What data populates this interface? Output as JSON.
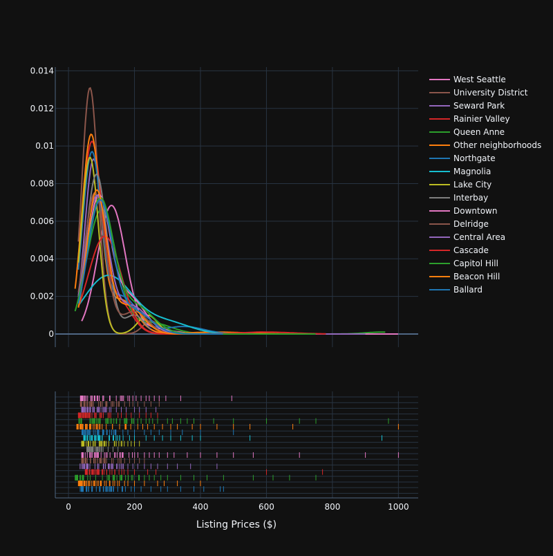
{
  "chart_data": {
    "type": "line",
    "subtype": "distplot",
    "xlabel": "Listing Prices ($)",
    "ylabel": "",
    "xlim": [
      -40,
      1060
    ],
    "ylim": [
      -0.0007,
      0.0142
    ],
    "x_ticks": [
      0,
      200,
      400,
      600,
      800,
      1000
    ],
    "y_ticks": [
      0,
      0.002,
      0.004,
      0.006,
      0.008,
      0.01,
      0.012,
      0.014
    ],
    "y_tick_labels": [
      "0",
      "0.002",
      "0.004",
      "0.006",
      "0.008",
      "0.01",
      "0.012",
      "0.014"
    ],
    "grid": true,
    "legend_position": "top-right",
    "series": [
      {
        "name": "West Seattle",
        "color": "#e377c2",
        "min": 40,
        "max": 500,
        "peaks": [
          [
            130,
            0.0068,
            42
          ],
          [
            250,
            0.0003,
            60
          ]
        ]
      },
      {
        "name": "University District",
        "color": "#8c564b",
        "min": 30,
        "max": 280,
        "peaks": [
          [
            65,
            0.0131,
            25
          ],
          [
            250,
            0.0007,
            25
          ]
        ]
      },
      {
        "name": "Seward Park",
        "color": "#9467bd",
        "min": 30,
        "max": 400,
        "peaks": [
          [
            75,
            0.009,
            26
          ],
          [
            160,
            0.0018,
            45
          ]
        ]
      },
      {
        "name": "Rainier Valley",
        "color": "#d62728",
        "min": 25,
        "max": 600,
        "peaks": [
          [
            70,
            0.01,
            30
          ],
          [
            150,
            0.0018,
            40
          ],
          [
            580,
            0.0001,
            40
          ]
        ]
      },
      {
        "name": "Queen Anne",
        "color": "#2ca02c",
        "min": 30,
        "max": 960,
        "peaks": [
          [
            100,
            0.0066,
            45
          ],
          [
            250,
            0.0006,
            60
          ],
          [
            950,
            0.0001,
            50
          ]
        ]
      },
      {
        "name": "Other neighborhoods",
        "color": "#ff7f0e",
        "min": 20,
        "max": 1000,
        "peaks": [
          [
            68,
            0.0104,
            28
          ],
          [
            160,
            0.0018,
            45
          ],
          [
            450,
            0.0001,
            90
          ]
        ]
      },
      {
        "name": "Northgate",
        "color": "#1f77b4",
        "min": 30,
        "max": 950,
        "peaks": [
          [
            70,
            0.0093,
            28
          ],
          [
            160,
            0.002,
            50
          ],
          [
            350,
            0.0004,
            60
          ]
        ]
      },
      {
        "name": "Magnolia",
        "color": "#17becf",
        "min": 30,
        "max": 950,
        "peaks": [
          [
            120,
            0.0031,
            75
          ],
          [
            300,
            0.0006,
            70
          ]
        ]
      },
      {
        "name": "Lake City",
        "color": "#bcbd22",
        "min": 30,
        "max": 300,
        "peaks": [
          [
            65,
            0.0094,
            26
          ],
          [
            240,
            0.001,
            30
          ]
        ]
      },
      {
        "name": "Interbay",
        "color": "#7f7f7f",
        "min": 40,
        "max": 250,
        "peaks": [
          [
            85,
            0.0085,
            32
          ],
          [
            200,
            0.001,
            30
          ]
        ]
      },
      {
        "name": "Downtown",
        "color": "#e377c2",
        "min": 30,
        "max": 1000,
        "peaks": [
          [
            90,
            0.007,
            35
          ],
          [
            180,
            0.002,
            50
          ]
        ]
      },
      {
        "name": "Delridge",
        "color": "#8c564b",
        "min": 30,
        "max": 450,
        "peaks": [
          [
            80,
            0.0075,
            32
          ],
          [
            200,
            0.0012,
            40
          ]
        ]
      },
      {
        "name": "Central Area",
        "color": "#9467bd",
        "min": 30,
        "max": 900,
        "peaks": [
          [
            85,
            0.0072,
            34
          ],
          [
            190,
            0.0015,
            50
          ]
        ]
      },
      {
        "name": "Cascade",
        "color": "#d62728",
        "min": 30,
        "max": 780,
        "peaks": [
          [
            110,
            0.0052,
            50
          ],
          [
            600,
            0.0001,
            80
          ]
        ]
      },
      {
        "name": "Capitol Hill",
        "color": "#2ca02c",
        "min": 20,
        "max": 750,
        "peaks": [
          [
            95,
            0.007,
            40
          ],
          [
            200,
            0.0015,
            55
          ]
        ]
      },
      {
        "name": "Beacon Hill",
        "color": "#ff7f0e",
        "min": 30,
        "max": 400,
        "peaks": [
          [
            85,
            0.0075,
            30
          ],
          [
            180,
            0.0015,
            45
          ]
        ]
      },
      {
        "name": "Ballard",
        "color": "#1f77b4",
        "min": 30,
        "max": 470,
        "peaks": [
          [
            95,
            0.007,
            38
          ],
          [
            200,
            0.0012,
            50
          ]
        ]
      }
    ],
    "rug": [
      {
        "name": "West Seattle",
        "color": "#e377c2",
        "min": 35,
        "max": 170,
        "extra": [
          180,
          185,
          195,
          205,
          220,
          235,
          245,
          260,
          275,
          295,
          340,
          495
        ]
      },
      {
        "name": "University District",
        "color": "#8c564b",
        "min": 35,
        "max": 160,
        "extra": [
          170,
          185,
          195,
          210,
          230,
          250,
          275
        ]
      },
      {
        "name": "Seward Park",
        "color": "#9467bd",
        "min": 40,
        "max": 130,
        "extra": [
          145,
          160,
          175,
          200,
          215,
          235,
          265
        ]
      },
      {
        "name": "Rainier Valley",
        "color": "#d62728",
        "min": 30,
        "max": 140,
        "extra": [
          150,
          160,
          175,
          190,
          215,
          235,
          250,
          270
        ]
      },
      {
        "name": "Queen Anne",
        "color": "#2ca02c",
        "min": 30,
        "max": 200,
        "extra": [
          210,
          220,
          235,
          245,
          255,
          270,
          300,
          315,
          340,
          360,
          380,
          440,
          500,
          600,
          700,
          750,
          970
        ]
      },
      {
        "name": "Other neighborhoods",
        "color": "#ff7f0e",
        "min": 25,
        "max": 200,
        "extra": [
          210,
          225,
          240,
          260,
          285,
          310,
          330,
          375,
          400,
          450,
          500,
          550,
          680,
          1000
        ]
      },
      {
        "name": "Northgate",
        "color": "#1f77b4",
        "min": 40,
        "max": 150,
        "extra": [
          165,
          180,
          200,
          230,
          250,
          275,
          310,
          345,
          400,
          500
        ]
      },
      {
        "name": "Magnolia",
        "color": "#17becf",
        "min": 45,
        "max": 170,
        "extra": [
          185,
          200,
          235,
          260,
          285,
          310,
          340,
          375,
          400,
          550,
          950
        ]
      },
      {
        "name": "Lake City",
        "color": "#bcbd22",
        "min": 40,
        "max": 170,
        "extra": [
          180,
          190,
          200,
          215
        ]
      },
      {
        "name": "Interbay",
        "color": "#7f7f7f",
        "min": 55,
        "max": 110,
        "extra": [
          120,
          135,
          150
        ]
      },
      {
        "name": "Downtown",
        "color": "#e377c2",
        "min": 40,
        "max": 220,
        "extra": [
          230,
          245,
          260,
          275,
          300,
          320,
          360,
          400,
          450,
          500,
          560,
          700,
          900,
          1000
        ]
      },
      {
        "name": "Delridge",
        "color": "#8c564b",
        "min": 40,
        "max": 160,
        "extra": [
          170,
          185,
          200,
          215,
          230
        ]
      },
      {
        "name": "Central Area",
        "color": "#9467bd",
        "min": 35,
        "max": 170,
        "extra": [
          180,
          195,
          210,
          230,
          250,
          270,
          300,
          330,
          370,
          450
        ]
      },
      {
        "name": "Cascade",
        "color": "#d62728",
        "min": 50,
        "max": 170,
        "extra": [
          180,
          200,
          240,
          265,
          600,
          770
        ]
      },
      {
        "name": "Capitol Hill",
        "color": "#2ca02c",
        "min": 20,
        "max": 220,
        "extra": [
          230,
          245,
          260,
          280,
          300,
          340,
          380,
          420,
          470,
          560,
          620,
          670,
          750
        ]
      },
      {
        "name": "Beacon Hill",
        "color": "#ff7f0e",
        "min": 30,
        "max": 160,
        "extra": [
          170,
          180,
          200,
          230,
          270,
          290,
          330,
          400
        ]
      },
      {
        "name": "Ballard",
        "color": "#1f77b4",
        "min": 35,
        "max": 180,
        "extra": [
          190,
          200,
          220,
          250,
          280,
          300,
          340,
          380,
          410,
          460,
          470
        ]
      }
    ]
  }
}
